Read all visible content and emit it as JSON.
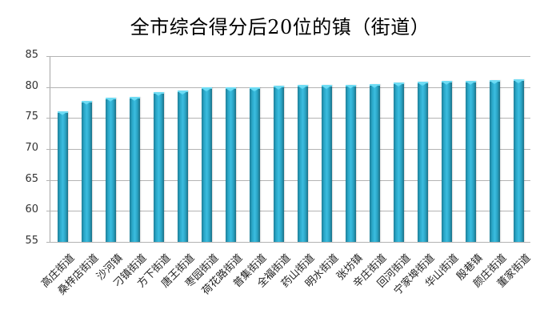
{
  "title": "全市综合得分后20位的镇（街道）",
  "chart_data": {
    "type": "bar",
    "title": "全市综合得分后20位的镇（街道）",
    "xlabel": "",
    "ylabel": "",
    "ylim": [
      55,
      85
    ],
    "yticks": [
      55,
      60,
      65,
      70,
      75,
      80,
      85
    ],
    "grid": true,
    "legend": "none",
    "categories": [
      "高庄街道",
      "桑梓店街道",
      "沙河镇",
      "刁镇街道",
      "方下街道",
      "唐王街道",
      "枣园街道",
      "荷花路街道",
      "普集街道",
      "全福街道",
      "药山街道",
      "明水街道",
      "张坊镇",
      "辛庄街道",
      "回河街道",
      "宁家埠街道",
      "华山街道",
      "殷巷镇",
      "颜庄街道",
      "董家街道"
    ],
    "values": [
      76.1,
      77.8,
      78.3,
      78.4,
      79.2,
      79.4,
      79.9,
      79.9,
      79.9,
      80.2,
      80.3,
      80.3,
      80.4,
      80.5,
      80.7,
      80.8,
      81.0,
      81.0,
      81.1,
      81.2
    ],
    "bar_color": "#2aa7c8"
  }
}
